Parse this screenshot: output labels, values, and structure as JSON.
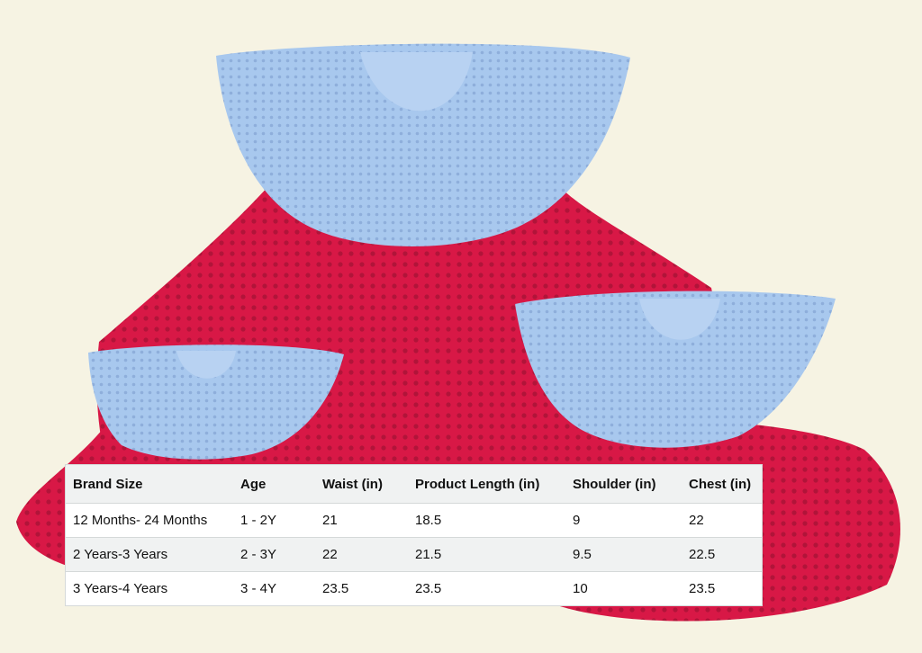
{
  "colors": {
    "background": "#f6f3e3",
    "dress_body": "#d81846",
    "collar": "#a8c8ee",
    "table_header_bg": "#f0f2f2"
  },
  "size_chart": {
    "headers": [
      "Brand Size",
      "Age",
      "Waist (in)",
      "Product Length (in)",
      "Shoulder (in)",
      "Chest (in)"
    ],
    "rows": [
      [
        "12 Months- 24 Months",
        "1 - 2Y",
        "21",
        "18.5",
        "9",
        "22"
      ],
      [
        "2 Years-3 Years",
        "2 - 3Y",
        "22",
        "21.5",
        "9.5",
        "22.5"
      ],
      [
        "3 Years-4 Years",
        "3 - 4Y",
        "23.5",
        "23.5",
        "10",
        "23.5"
      ]
    ]
  }
}
